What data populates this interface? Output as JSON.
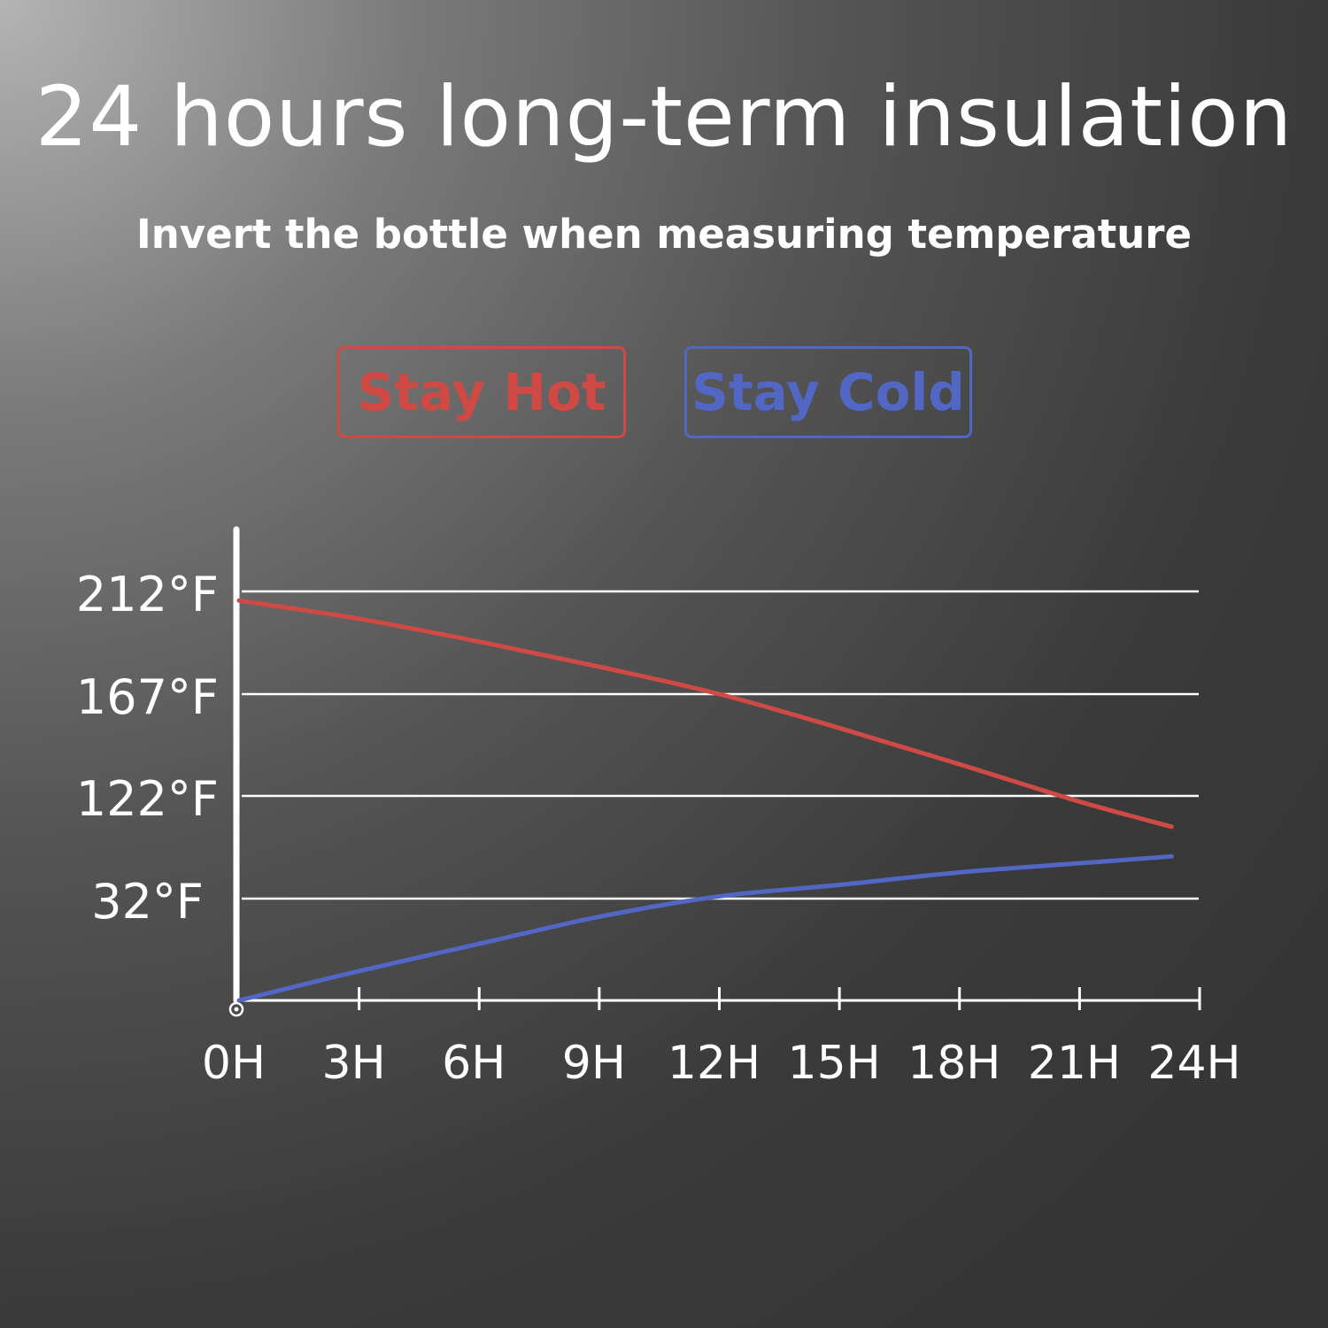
{
  "title": "24 hours long-term insulation",
  "subtitle": "Invert the bottle when measuring temperature",
  "chart_data": {
    "type": "line",
    "title": "24 hours long-term insulation",
    "subtitle": "Invert the bottle when measuring temperature",
    "x_unit": "hours",
    "x_tick_labels": [
      "0H",
      "3H",
      "6H",
      "9H",
      "12H",
      "15H",
      "18H",
      "21H",
      "24H"
    ],
    "x_tick_values": [
      0,
      3,
      6,
      9,
      12,
      15,
      18,
      21,
      24
    ],
    "xlim": [
      0,
      24
    ],
    "y_tick_labels": [
      "212°F",
      "167°F",
      "122°F",
      "32°F"
    ],
    "y_scale": "ordinal-gridlines",
    "grid": true,
    "legend_position": "top-center",
    "series": [
      {
        "name": "Stay Hot",
        "color": "#cf4a45",
        "x": [
          0,
          3,
          6,
          9,
          12,
          15,
          18,
          21,
          23.3
        ],
        "y": [
          208,
          200,
          190,
          179,
          167,
          152,
          136,
          117,
          95
        ]
      },
      {
        "name": "Stay Cold",
        "color": "#5266c4",
        "x": [
          0,
          3,
          6,
          9,
          12,
          15,
          18,
          21,
          23.3
        ],
        "y": [
          -13,
          0,
          12,
          24,
          34,
          44,
          55,
          63,
          69
        ]
      }
    ]
  }
}
